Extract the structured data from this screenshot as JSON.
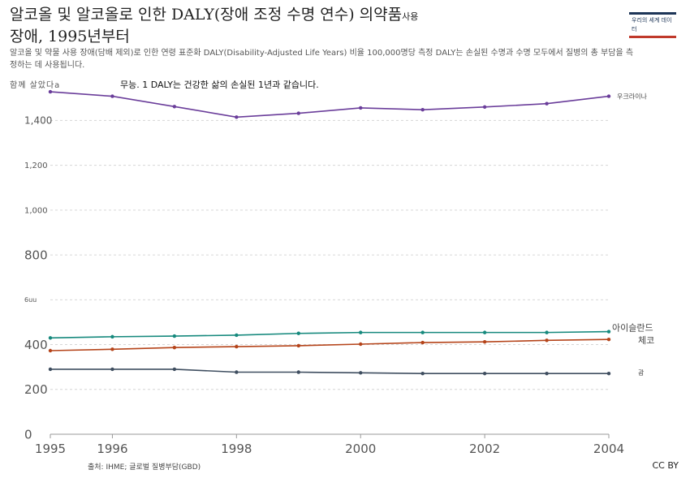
{
  "header": {
    "title_main": "알코올 및 알코올로 인한 DALY(장애 조정 수명 연수) 의약품",
    "title_sup": "사용",
    "title_line2": "장애, 1995년부터",
    "subtitle": "알코올 및 약물 사용 장애(담배 제외)로 인한 연령 표준화 DALY(Disability-Adjusted Life Years) 비율 100,000명당 측정 DALY는 손실된 수명과 수명 모두에서 질병의 총 부담을 측정하는 데 사용됩니다.",
    "unit_note": "함께 살았다a",
    "note_text": "무능. 1 DALY는 건강한 삶의 손실된 1년과 같습니다.",
    "logo_text": "우리의 세계 데이터"
  },
  "footer": {
    "source": "출처: IHME; 글로벌 질병부담(GBD)",
    "license": "CC BY"
  },
  "colors": {
    "ukraine": "#6a3d9a",
    "iceland": "#16897d",
    "czech": "#b5441a",
    "guam": "#3f4e60"
  },
  "chart_data": {
    "type": "line",
    "x": [
      1995,
      1996,
      1997,
      1998,
      1999,
      2000,
      2001,
      2002,
      2003,
      2004
    ],
    "xlim": [
      1995,
      2004
    ],
    "ylim": [
      0,
      1550
    ],
    "x_ticks": [
      {
        "value": 1995,
        "label": "1995"
      },
      {
        "value": 1996,
        "label": "1996"
      },
      {
        "value": 1998,
        "label": "1998"
      },
      {
        "value": 2000,
        "label": "2000"
      },
      {
        "value": 2002,
        "label": "2002"
      },
      {
        "value": 2004,
        "label": "2004"
      }
    ],
    "y_ticks": [
      {
        "value": 0,
        "label": "0",
        "size": "large"
      },
      {
        "value": 200,
        "label": "200",
        "size": "large"
      },
      {
        "value": 400,
        "label": "400",
        "size": "large"
      },
      {
        "value": 600,
        "label": "6uu",
        "size": "tiny"
      },
      {
        "value": 800,
        "label": "800",
        "size": "large"
      },
      {
        "value": 1000,
        "label": "1,000",
        "size": "small"
      },
      {
        "value": 1200,
        "label": "1,200",
        "size": "small"
      },
      {
        "value": 1400,
        "label": "1,400",
        "size": "medium"
      }
    ],
    "grid": "horizontal-dashed",
    "series": [
      {
        "key": "ukraine",
        "name": "우크라이나",
        "values": [
          1528,
          1508,
          1462,
          1415,
          1432,
          1456,
          1448,
          1460,
          1475,
          1508
        ]
      },
      {
        "key": "iceland",
        "name": "아이슬란드",
        "values": [
          430,
          435,
          438,
          442,
          450,
          454,
          454,
          454,
          454,
          458
        ]
      },
      {
        "key": "czech",
        "name": "체코",
        "values": [
          373,
          379,
          387,
          391,
          395,
          402,
          409,
          412,
          419,
          423
        ]
      },
      {
        "key": "guam",
        "name": "괌",
        "values": [
          290,
          290,
          290,
          277,
          277,
          274,
          271,
          271,
          271,
          271
        ]
      }
    ]
  }
}
